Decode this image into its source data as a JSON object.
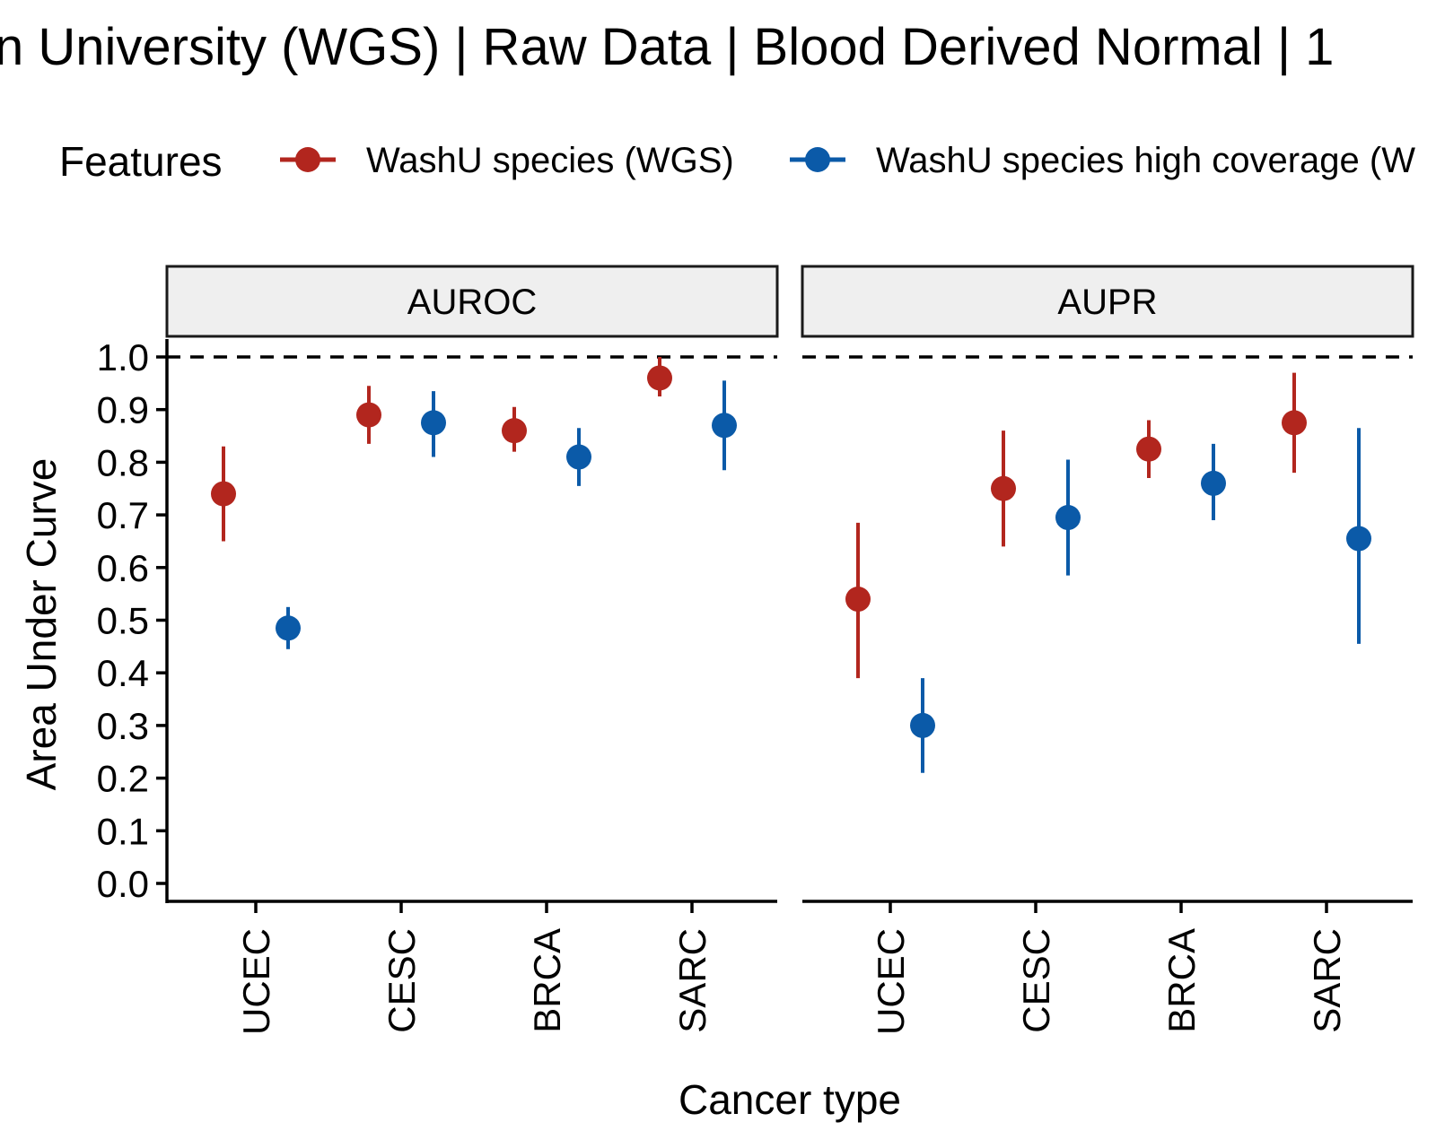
{
  "chart_data": {
    "type": "scatter",
    "title": "n University (WGS) | Raw Data | Blood Derived Normal | 1",
    "xlabel": "Cancer type",
    "ylabel": "Area Under Curve",
    "ylim": [
      0,
      1
    ],
    "y_ticks": [
      "0.0",
      "0.1",
      "0.2",
      "0.3",
      "0.4",
      "0.5",
      "0.6",
      "0.7",
      "0.8",
      "0.9",
      "1.0"
    ],
    "reference_line": 1.0,
    "categories": [
      "UCEC",
      "CESC",
      "BRCA",
      "SARC"
    ],
    "legend": {
      "title": "Features",
      "position": "top",
      "entries": [
        {
          "label": "WashU species (WGS)",
          "color": "#B2261E"
        },
        {
          "label": "WashU species high coverage (W",
          "color": "#0B5AA8"
        }
      ]
    },
    "panels": [
      {
        "name": "AUROC",
        "series": [
          {
            "color": "#B2261E",
            "values": [
              0.74,
              0.89,
              0.86,
              0.96
            ],
            "lower": [
              0.65,
              0.835,
              0.82,
              0.925
            ],
            "upper": [
              0.83,
              0.945,
              0.905,
              1.0
            ]
          },
          {
            "color": "#0B5AA8",
            "values": [
              0.485,
              0.875,
              0.81,
              0.87
            ],
            "lower": [
              0.445,
              0.81,
              0.755,
              0.785
            ],
            "upper": [
              0.525,
              0.935,
              0.865,
              0.955
            ]
          }
        ]
      },
      {
        "name": "AUPR",
        "series": [
          {
            "color": "#B2261E",
            "values": [
              0.54,
              0.75,
              0.825,
              0.875
            ],
            "lower": [
              0.39,
              0.64,
              0.77,
              0.78
            ],
            "upper": [
              0.685,
              0.86,
              0.88,
              0.97
            ]
          },
          {
            "color": "#0B5AA8",
            "values": [
              0.3,
              0.695,
              0.76,
              0.655
            ],
            "lower": [
              0.21,
              0.585,
              0.69,
              0.455
            ],
            "upper": [
              0.39,
              0.805,
              0.835,
              0.865
            ]
          }
        ]
      }
    ]
  }
}
